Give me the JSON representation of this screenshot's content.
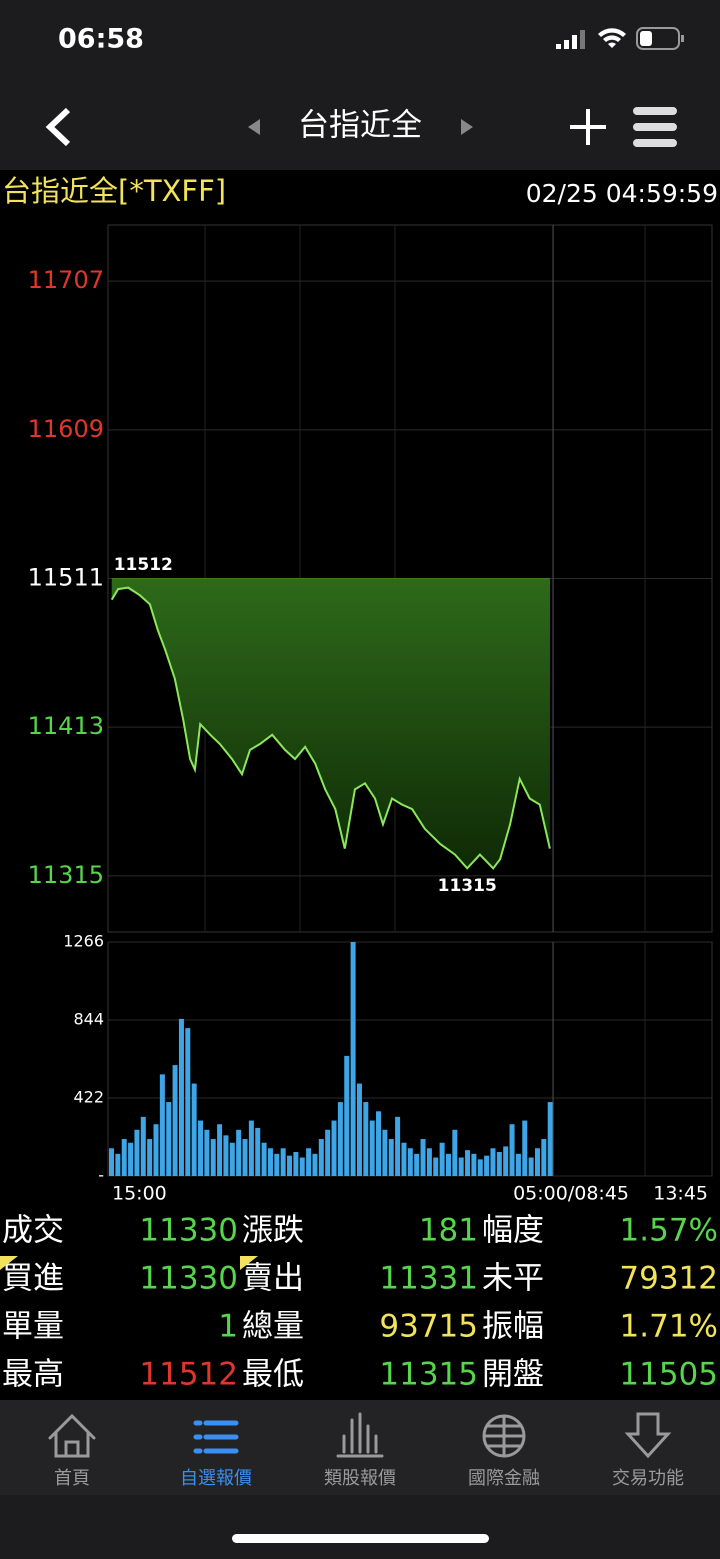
{
  "status_bar": {
    "time": "06:58"
  },
  "nav": {
    "title": "台指近全"
  },
  "header": {
    "symbol": "台指近全[*TXFF]",
    "datetime": "02/25 04:59:59"
  },
  "chart_data": [
    {
      "type": "line",
      "fill": true,
      "reference": 11511,
      "up_color": "#e0362c",
      "down_color": "#56d64a",
      "flat_color": "#ffffff",
      "color": "#8be85a",
      "xlim": [
        0,
        1140
      ],
      "ylim": [
        11278,
        11744
      ],
      "yticks": [
        11315,
        11413,
        11511,
        11609,
        11707
      ],
      "x": [
        7,
        19,
        38,
        60,
        79,
        94,
        108,
        126,
        142,
        155,
        164,
        174,
        193,
        211,
        234,
        253,
        268,
        287,
        310,
        334,
        353,
        372,
        391,
        410,
        429,
        447,
        466,
        485,
        504,
        519,
        536,
        555,
        574,
        598,
        627,
        655,
        678,
        702,
        727,
        740,
        759,
        777,
        796,
        815,
        834
      ],
      "values": [
        11497,
        11504,
        11505,
        11500,
        11494,
        11477,
        11464,
        11445,
        11418,
        11392,
        11385,
        11415,
        11408,
        11402,
        11392,
        11382,
        11398,
        11402,
        11408,
        11398,
        11392,
        11400,
        11389,
        11372,
        11359,
        11333,
        11372,
        11376,
        11366,
        11349,
        11366,
        11362,
        11359,
        11346,
        11336,
        11329,
        11320,
        11329,
        11320,
        11326,
        11349,
        11379,
        11366,
        11362,
        11333
      ],
      "annotations": [
        {
          "x": 7,
          "value": 11512
        },
        {
          "x": 678,
          "value": 11315
        }
      ]
    },
    {
      "type": "bar",
      "color": "#3ea6e6",
      "xlim": [
        0,
        1140
      ],
      "ylim": [
        0,
        1266
      ],
      "yticks": [
        {
          "value": 0,
          "label": "-"
        },
        422,
        844,
        1266
      ],
      "xticks": [
        {
          "value": 0,
          "label": "15:00"
        },
        {
          "value": 840,
          "label": "05:00/08:45"
        },
        {
          "value": 1140,
          "label": "13:45"
        }
      ],
      "x": [
        0,
        12,
        24,
        36,
        48,
        60,
        72,
        84,
        96,
        108,
        120,
        132,
        144,
        156,
        168,
        180,
        192,
        204,
        216,
        228,
        240,
        252,
        264,
        276,
        288,
        300,
        312,
        324,
        336,
        348,
        360,
        372,
        384,
        396,
        408,
        420,
        432,
        444,
        456,
        468,
        480,
        492,
        504,
        516,
        528,
        540,
        552,
        564,
        576,
        588,
        600,
        612,
        624,
        636,
        648,
        660,
        672,
        684,
        696,
        708,
        720,
        732,
        744,
        756,
        768,
        780,
        792,
        804,
        816,
        828
      ],
      "values": [
        150,
        120,
        200,
        180,
        250,
        320,
        200,
        280,
        550,
        400,
        600,
        850,
        800,
        500,
        300,
        250,
        200,
        280,
        220,
        180,
        250,
        200,
        300,
        260,
        180,
        150,
        120,
        150,
        110,
        130,
        100,
        150,
        120,
        200,
        250,
        300,
        400,
        650,
        1266,
        500,
        400,
        300,
        350,
        250,
        200,
        320,
        180,
        150,
        120,
        200,
        150,
        100,
        180,
        120,
        250,
        100,
        140,
        120,
        90,
        110,
        150,
        130,
        160,
        280,
        120,
        300,
        100,
        150,
        200,
        400
      ]
    }
  ],
  "quote": {
    "rows": [
      [
        {
          "label": "成交",
          "value": "11330",
          "color": "#56d64a"
        },
        {
          "label": "漲跌",
          "value": "181",
          "color": "#56d64a"
        },
        {
          "label": "幅度",
          "value": "1.57%",
          "color": "#56d64a"
        }
      ],
      [
        {
          "label": "買進",
          "value": "11330",
          "color": "#56d64a"
        },
        {
          "label": "賣出",
          "value": "11331",
          "color": "#56d64a"
        },
        {
          "label": "未平",
          "value": "79312",
          "color": "#f2e35a"
        }
      ],
      [
        {
          "label": "單量",
          "value": "1",
          "color": "#56d64a"
        },
        {
          "label": "總量",
          "value": "93715",
          "color": "#f2e35a"
        },
        {
          "label": "振幅",
          "value": "1.71%",
          "color": "#f2e35a"
        }
      ],
      [
        {
          "label": "最高",
          "value": "11512",
          "color": "#e0362c"
        },
        {
          "label": "最低",
          "value": "11315",
          "color": "#56d64a"
        },
        {
          "label": "開盤",
          "value": "11505",
          "color": "#56d64a"
        }
      ]
    ]
  },
  "tabs": [
    {
      "label": "首頁"
    },
    {
      "label": "自選報價",
      "active": true
    },
    {
      "label": "類股報價"
    },
    {
      "label": "國際金融"
    },
    {
      "label": "交易功能"
    }
  ]
}
